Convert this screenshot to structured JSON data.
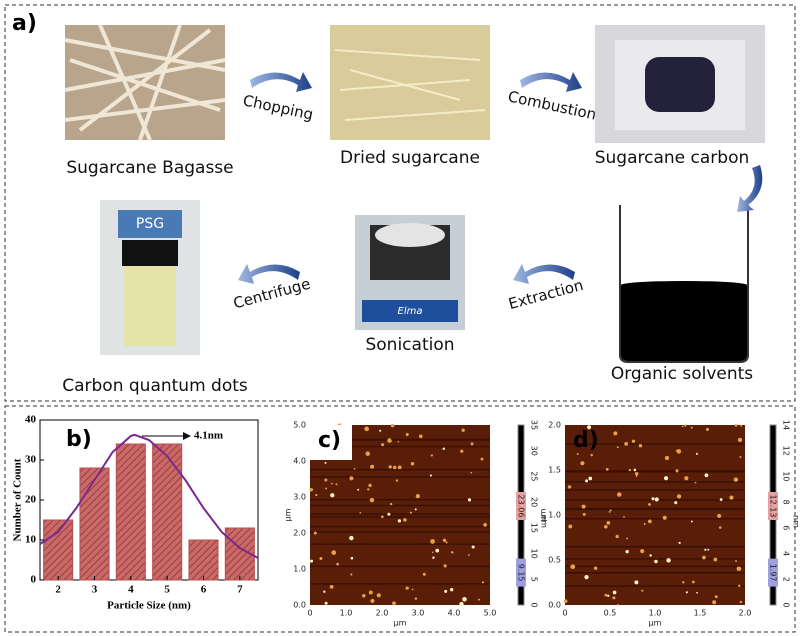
{
  "panel_a": {
    "label": "a)",
    "steps": [
      "Sugarcane Bagasse",
      "Dried sugarcane",
      "Sugarcane carbon",
      "Organic solvents",
      "Sonication",
      "Carbon quantum dots"
    ],
    "arrows": [
      "Chopping",
      "Combustion",
      "Extraction",
      "Centrifuge"
    ],
    "photo_text": [
      "PSG",
      "Elma"
    ]
  },
  "chart_data": {
    "type": "bar",
    "panel_label": "b)",
    "x_label": "Particle Size (nm)",
    "y_label": "Number of Count",
    "annotation": "4.1nm",
    "x": [
      2,
      3,
      4,
      5,
      6,
      7
    ],
    "values": [
      15,
      28,
      34,
      34,
      10,
      13
    ],
    "color": "#b5504f",
    "xlim": [
      1.5,
      7.5
    ],
    "xticks": [
      2,
      3,
      4,
      5,
      6,
      7
    ],
    "ylim": [
      0,
      40
    ],
    "yticks": [
      0,
      10,
      20,
      30,
      40
    ],
    "fit": {
      "color": "#7a2a8c",
      "x": [
        1.5,
        2,
        2.5,
        3,
        3.5,
        4,
        4.1,
        4.5,
        5,
        5.5,
        6,
        6.5,
        7,
        7.5
      ],
      "values": [
        9,
        12,
        18,
        25,
        32,
        36,
        36.3,
        35,
        31,
        25,
        18,
        12,
        8,
        5.5
      ]
    }
  },
  "panel_c": {
    "label": "c)",
    "unit": "μm",
    "xticks": [
      "0",
      "1.0",
      "2.0",
      "3.0",
      "4.0",
      "5.0"
    ],
    "yticks": [
      "0.0",
      "1.0",
      "2.0",
      "3.0",
      "4.0",
      "5.0"
    ],
    "bar_unit": "nm",
    "bar_ticks": [
      "0",
      "5",
      "10",
      "15",
      "20",
      "25",
      "30",
      "35"
    ],
    "bar_labels": [
      "23.06",
      "9.15"
    ]
  },
  "panel_d": {
    "label": "d)",
    "unit": "μm",
    "xticks": [
      "0",
      "0.5",
      "1.0",
      "1.5",
      "2.0"
    ],
    "yticks": [
      "0.0",
      "0.5",
      "1.0",
      "1.5",
      "2.0"
    ],
    "bar_unit": "nm",
    "bar_ticks": [
      "0",
      "2",
      "4",
      "6",
      "8",
      "10",
      "12",
      "14"
    ],
    "bar_labels": [
      "12.13",
      "1.97"
    ]
  }
}
